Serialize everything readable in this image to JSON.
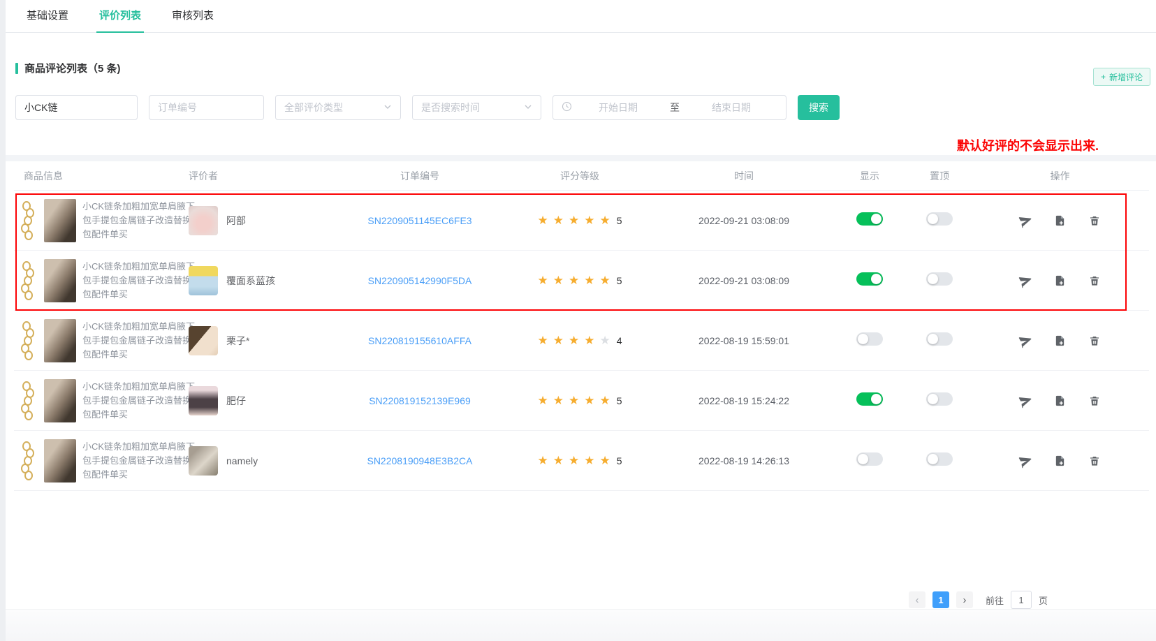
{
  "tabs": [
    {
      "label": "基础设置",
      "active": false
    },
    {
      "label": "评价列表",
      "active": true
    },
    {
      "label": "审核列表",
      "active": false
    }
  ],
  "section": {
    "title": "商品评论列表（5 条)",
    "add_button": "新增评论"
  },
  "filters": {
    "keyword_value": "小CK链",
    "order_placeholder": "订单编号",
    "type_value": "全部评价类型",
    "time_value": "是否搜索时间",
    "date_start_placeholder": "开始日期",
    "date_separator": "至",
    "date_end_placeholder": "结束日期",
    "search_button": "搜索"
  },
  "annotation": "默认好评的不会显示出来.",
  "table": {
    "headers": [
      "商品信息",
      "评价者",
      "订单编号",
      "评分等级",
      "时间",
      "显示",
      "置顶",
      "操作"
    ],
    "rows": [
      {
        "product": "小CK链条加粗加宽单肩腋下包手提包金属链子改造替换包包配件单买",
        "reviewer": "阿部",
        "order": "SN2209051145EC6FE3",
        "rating": 5,
        "time": "2022-09-21 03:08:09",
        "show_on": true,
        "top_on": false
      },
      {
        "product": "小CK链条加粗加宽单肩腋下包手提包金属链子改造替换包包配件单买",
        "reviewer": "覆面系蓝孩",
        "order": "SN220905142990F5DA",
        "rating": 5,
        "time": "2022-09-21 03:08:09",
        "show_on": true,
        "top_on": false
      },
      {
        "product": "小CK链条加粗加宽单肩腋下包手提包金属链子改造替换包包配件单买",
        "reviewer": "栗子*",
        "order": "SN220819155610AFFA",
        "rating": 4,
        "time": "2022-08-19 15:59:01",
        "show_on": false,
        "top_on": false
      },
      {
        "product": "小CK链条加粗加宽单肩腋下包手提包金属链子改造替换包包配件单买",
        "reviewer": "肥仔",
        "order": "SN220819152139E969",
        "rating": 5,
        "time": "2022-08-19 15:24:22",
        "show_on": true,
        "top_on": false
      },
      {
        "product": "小CK链条加粗加宽单肩腋下包手提包金属链子改造替换包包配件单买",
        "reviewer": "namely",
        "order": "SN2208190948E3B2CA",
        "rating": 5,
        "time": "2022-08-19 14:26:13",
        "show_on": false,
        "top_on": false
      }
    ]
  },
  "pagination": {
    "current_page": "1",
    "goto_label": "前往",
    "goto_value": "1",
    "unit_label": "页"
  },
  "icon_glyphs": {
    "plus": "+",
    "chevron_left": "‹",
    "chevron_right": "›",
    "star": "★"
  },
  "colors": {
    "accent_teal": "#26bf9d",
    "toggle_on_green": "#06c05a",
    "star_orange": "#f6ad2f",
    "star_empty_gray": "#dcdfe3",
    "link_blue": "#4a9ef7",
    "annotation_red": "#fb0505",
    "active_page_blue": "#3f9ffb"
  }
}
